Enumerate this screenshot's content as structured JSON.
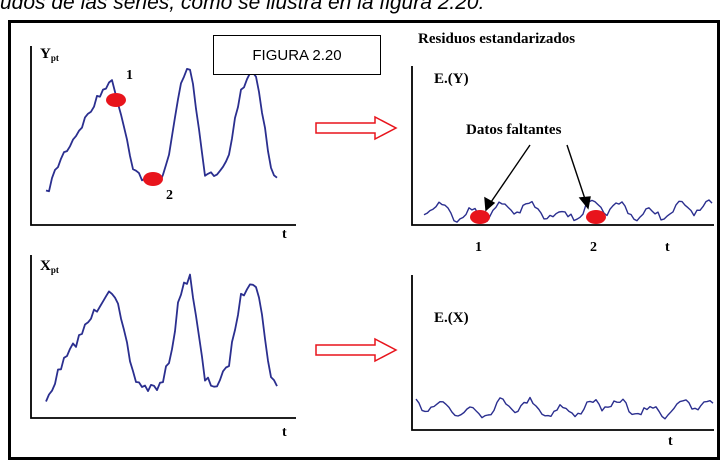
{
  "top_text": "udos de las series, como se ilustra en la figura 2.20:",
  "figure_label": "FIGURA 2.20",
  "right_title": "Residuos estandarizados",
  "panel_y": {
    "var": "Y",
    "sub": "pt",
    "axis": "t",
    "point1": "1",
    "point2": "2"
  },
  "panel_x": {
    "var": "X",
    "sub": "pt",
    "axis": "t"
  },
  "residual_y": {
    "label": "E.(Y)",
    "annotation": "Datos faltantes",
    "axis": "t",
    "tick1": "1",
    "tick2": "2"
  },
  "residual_x": {
    "label": "E.(X)",
    "axis": "t"
  },
  "colors": {
    "series": "#2b2f8f",
    "missing_point": "#e8141c",
    "arrow": "#e8141c"
  }
}
